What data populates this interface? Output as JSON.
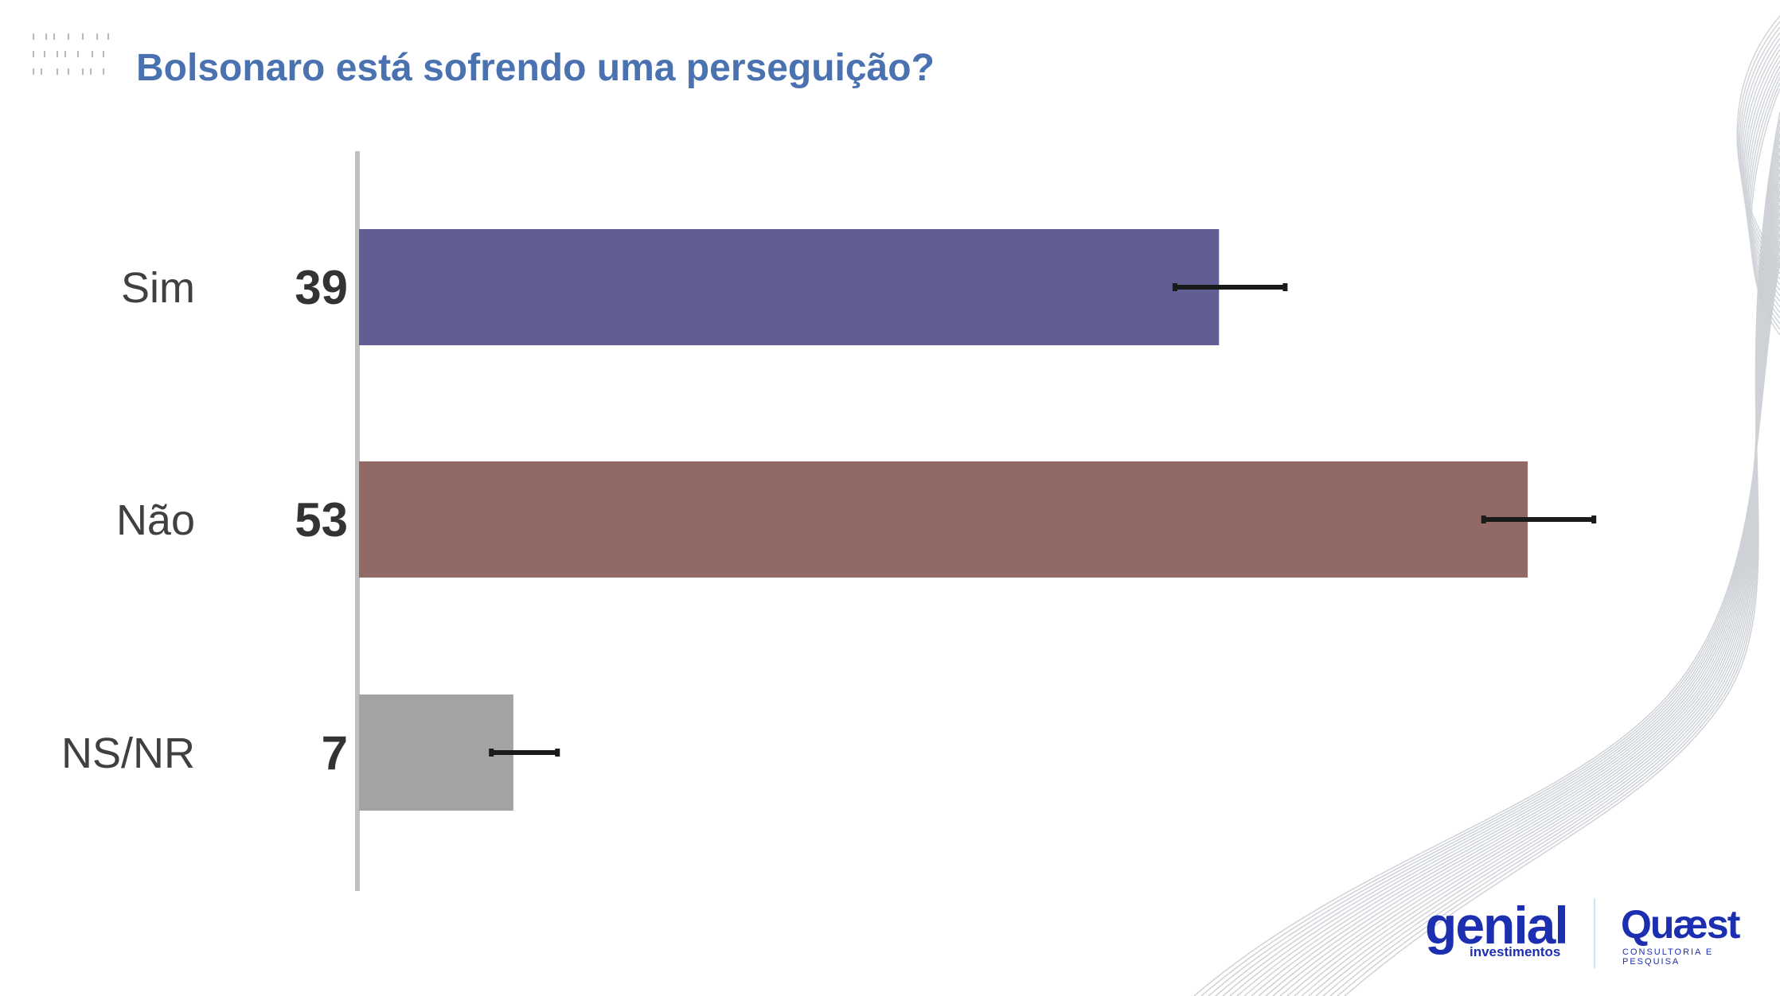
{
  "title": "Bolsonaro está sofrendo uma perseguição?",
  "chart_data": {
    "type": "bar",
    "orientation": "horizontal",
    "categories": [
      "Sim",
      "Não",
      "NS/NR"
    ],
    "values": [
      39,
      53,
      7
    ],
    "colors": [
      "#615e94",
      "#916a65",
      "#a3a3a3"
    ],
    "error_bars": [
      [
        37,
        42
      ],
      [
        51,
        56
      ],
      [
        6,
        9
      ]
    ],
    "xlim": [
      0,
      60
    ],
    "grid": false
  },
  "logos": {
    "genial": "genial",
    "genial_sub": "investimentos",
    "quaest": "Quæst",
    "quaest_sub": "CONSULTORIA E PESQUISA"
  }
}
